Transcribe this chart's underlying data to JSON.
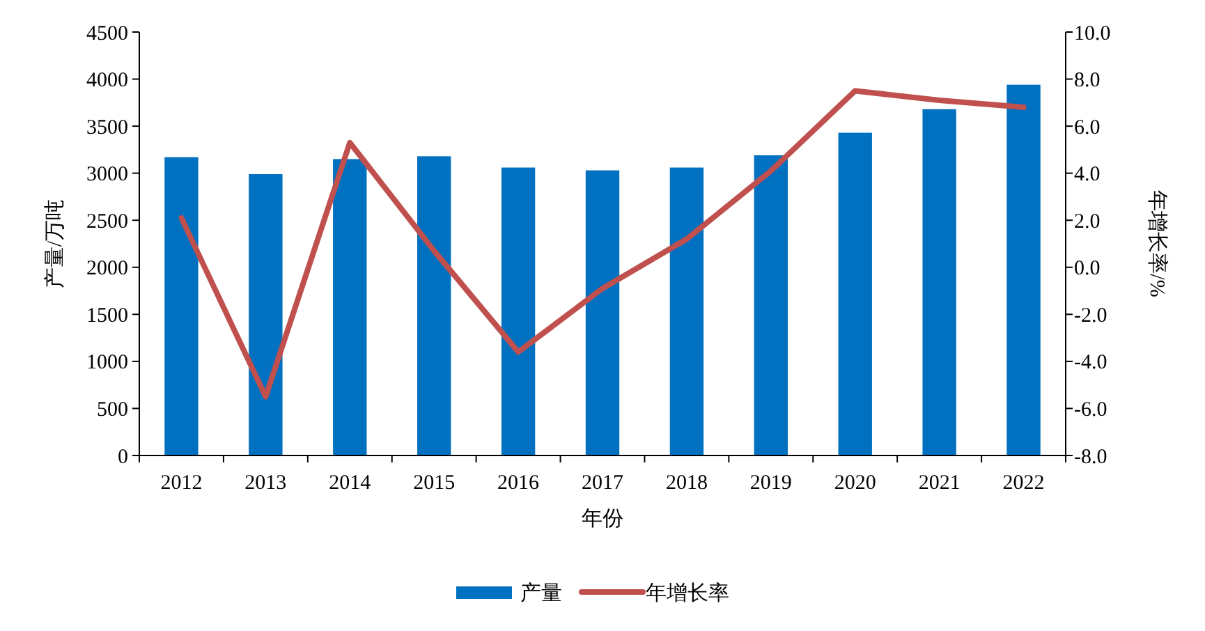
{
  "chart_data": {
    "type": "bar",
    "xlabel": "年份",
    "ylabel": "产量/万吨",
    "y2label": "年增长率/%",
    "categories": [
      "2012",
      "2013",
      "2014",
      "2015",
      "2016",
      "2017",
      "2018",
      "2019",
      "2020",
      "2021",
      "2022"
    ],
    "series": [
      {
        "name": "产量",
        "color": "#0070c0",
        "values": [
          3170,
          2990,
          3150,
          3180,
          3060,
          3030,
          3060,
          3190,
          3430,
          3680,
          3940
        ]
      },
      {
        "name": "年增长率",
        "type": "line",
        "axis": "y2",
        "color": "#c0504d",
        "values": [
          2.1,
          -5.5,
          5.3,
          0.7,
          -3.6,
          -0.9,
          1.2,
          4.1,
          7.5,
          7.1,
          6.8
        ]
      }
    ],
    "ylim": [
      0,
      4500
    ],
    "yticks": [
      0,
      500,
      1000,
      1500,
      2000,
      2500,
      3000,
      3500,
      4000,
      4500
    ],
    "y2lim": [
      -8,
      10
    ],
    "y2ticks": [
      {
        "value": -8,
        "label": "-8.0"
      },
      {
        "value": -6,
        "label": "-6.0"
      },
      {
        "value": -4,
        "label": "-4.0"
      },
      {
        "value": -2,
        "label": "-2.0"
      },
      {
        "value": 0,
        "label": "0.0"
      },
      {
        "value": 2,
        "label": "2.0"
      },
      {
        "value": 4,
        "label": "4.0"
      },
      {
        "value": 6,
        "label": "6.0"
      },
      {
        "value": 8,
        "label": "8.0"
      },
      {
        "value": 10,
        "label": "10.0"
      }
    ],
    "legend": "bottom",
    "grid": false
  }
}
